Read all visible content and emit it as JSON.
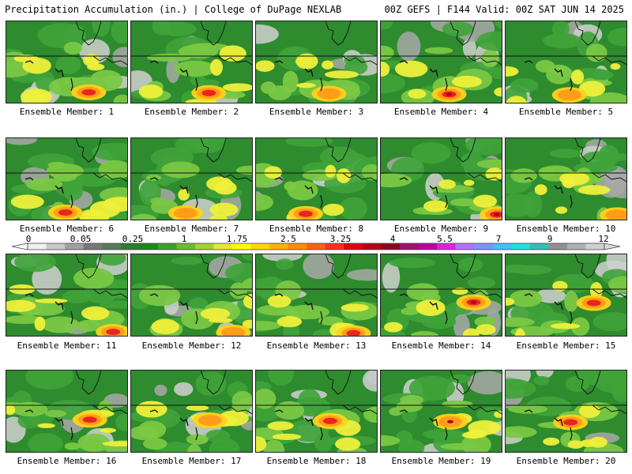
{
  "header": {
    "left": "Precipitation Accumulation (in.) | College of DuPage NEXLAB",
    "right": "00Z GEFS | F144 Valid: 00Z SAT JUN 14 2025"
  },
  "members": [
    {
      "label": "Ensemble Member: 1"
    },
    {
      "label": "Ensemble Member: 2"
    },
    {
      "label": "Ensemble Member: 3"
    },
    {
      "label": "Ensemble Member: 4"
    },
    {
      "label": "Ensemble Member: 5"
    },
    {
      "label": "Ensemble Member: 6"
    },
    {
      "label": "Ensemble Member: 7"
    },
    {
      "label": "Ensemble Member: 8"
    },
    {
      "label": "Ensemble Member: 9"
    },
    {
      "label": "Ensemble Member: 10"
    },
    {
      "label": "Ensemble Member: 11"
    },
    {
      "label": "Ensemble Member: 12"
    },
    {
      "label": "Ensemble Member: 13"
    },
    {
      "label": "Ensemble Member: 14"
    },
    {
      "label": "Ensemble Member: 15"
    },
    {
      "label": "Ensemble Member: 16"
    },
    {
      "label": "Ensemble Member: 17"
    },
    {
      "label": "Ensemble Member: 18"
    },
    {
      "label": "Ensemble Member: 19"
    },
    {
      "label": "Ensemble Member: 20"
    }
  ],
  "colorbar": {
    "tick_labels": [
      "0",
      "0.05",
      "0.25",
      "1",
      "1.75",
      "2.5",
      "3.25",
      "4",
      "5.5",
      "7",
      "9",
      "12"
    ],
    "colors": [
      "#f0f0f0",
      "#c8c8c8",
      "#a0a0a0",
      "#787878",
      "#5a7a5a",
      "#2e7d2e",
      "#1a8a1a",
      "#3aa02a",
      "#6cbb2e",
      "#a8d030",
      "#e6e830",
      "#ffff00",
      "#ffd700",
      "#ffb000",
      "#ff8c00",
      "#ff6010",
      "#ff3020",
      "#e00010",
      "#b80018",
      "#900020",
      "#a0106a",
      "#c000a0",
      "#e020e0",
      "#b070ff",
      "#8090ff",
      "#40c0ff",
      "#20e0e0",
      "#30c0b0",
      "#909090",
      "#b0b0b0",
      "#d0d0d0"
    ]
  }
}
